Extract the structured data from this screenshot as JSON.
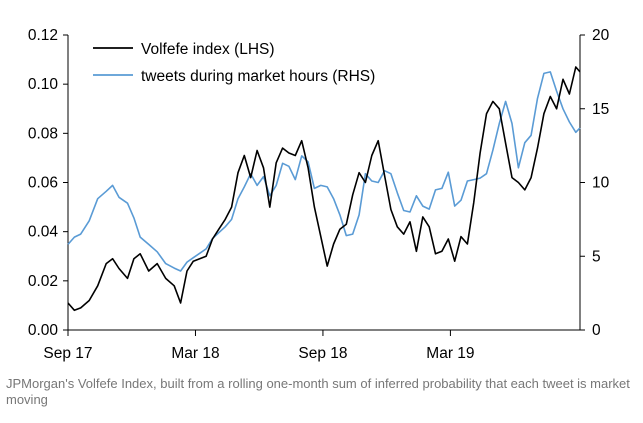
{
  "caption": "JPMorgan's Volfefe Index, built from a rolling one-month sum of inferred probability that each tweet is market moving",
  "colors": {
    "volfefe": "#000000",
    "tweets": "#5a9bd5",
    "axis": "#000000"
  },
  "chart_data": {
    "type": "line",
    "title": "",
    "xlabel": "",
    "ylabel_left": "",
    "ylabel_right": "",
    "x_ticks": [
      {
        "label": "Sep 17",
        "month": 0
      },
      {
        "label": "Mar 18",
        "month": 6
      },
      {
        "label": "Sep 18",
        "month": 12
      },
      {
        "label": "Mar 19",
        "month": 18
      }
    ],
    "x_range_months": [
      0,
      24.1
    ],
    "y_left": {
      "range": [
        0,
        0.12
      ],
      "ticks": [
        "0.00",
        "0.02",
        "0.04",
        "0.06",
        "0.08",
        "0.10",
        "0.12"
      ]
    },
    "y_right": {
      "range": [
        0,
        20
      ],
      "ticks": [
        "0",
        "5",
        "10",
        "15",
        "20"
      ]
    },
    "legend": {
      "placement": "top-left"
    },
    "series": [
      {
        "name": "Volfefe index (LHS)",
        "axis": "left",
        "x": [
          0.0,
          0.3,
          0.6,
          1.0,
          1.4,
          1.8,
          2.1,
          2.4,
          2.8,
          3.1,
          3.4,
          3.8,
          4.2,
          4.6,
          5.0,
          5.3,
          5.6,
          5.9,
          6.2,
          6.5,
          6.8,
          7.1,
          7.4,
          7.7,
          8.0,
          8.3,
          8.6,
          8.9,
          9.2,
          9.5,
          9.8,
          10.1,
          10.4,
          10.7,
          11.0,
          11.3,
          11.6,
          11.9,
          12.2,
          12.5,
          12.8,
          13.1,
          13.4,
          13.7,
          14.0,
          14.3,
          14.6,
          14.9,
          15.2,
          15.5,
          15.8,
          16.1,
          16.4,
          16.7,
          17.0,
          17.3,
          17.6,
          17.9,
          18.2,
          18.5,
          18.8,
          19.1,
          19.4,
          19.7,
          20.0,
          20.3,
          20.6,
          20.9,
          21.2,
          21.5,
          21.8,
          22.1,
          22.4,
          22.7,
          23.0,
          23.3,
          23.6,
          23.9,
          24.1
        ],
        "values": [
          0.011,
          0.008,
          0.009,
          0.012,
          0.018,
          0.027,
          0.029,
          0.025,
          0.021,
          0.029,
          0.031,
          0.024,
          0.027,
          0.021,
          0.018,
          0.011,
          0.024,
          0.028,
          0.029,
          0.03,
          0.037,
          0.041,
          0.045,
          0.05,
          0.064,
          0.071,
          0.062,
          0.073,
          0.066,
          0.05,
          0.068,
          0.074,
          0.072,
          0.071,
          0.077,
          0.066,
          0.05,
          0.038,
          0.026,
          0.035,
          0.041,
          0.043,
          0.055,
          0.064,
          0.06,
          0.071,
          0.077,
          0.063,
          0.049,
          0.042,
          0.039,
          0.044,
          0.032,
          0.046,
          0.042,
          0.031,
          0.032,
          0.037,
          0.028,
          0.038,
          0.035,
          0.052,
          0.072,
          0.088,
          0.093,
          0.09,
          0.076,
          0.062,
          0.06,
          0.057,
          0.062,
          0.074,
          0.088,
          0.095,
          0.09,
          0.102,
          0.096,
          0.107,
          0.105
        ]
      },
      {
        "name": "tweets during market hours (RHS)",
        "axis": "right",
        "x": [
          0.0,
          0.3,
          0.6,
          1.0,
          1.4,
          1.8,
          2.1,
          2.4,
          2.8,
          3.1,
          3.4,
          3.8,
          4.2,
          4.6,
          5.0,
          5.3,
          5.6,
          5.9,
          6.2,
          6.5,
          6.8,
          7.1,
          7.4,
          7.7,
          8.0,
          8.3,
          8.6,
          8.9,
          9.2,
          9.5,
          9.8,
          10.1,
          10.4,
          10.7,
          11.0,
          11.3,
          11.6,
          11.9,
          12.2,
          12.5,
          12.8,
          13.1,
          13.4,
          13.7,
          14.0,
          14.3,
          14.6,
          14.9,
          15.2,
          15.5,
          15.8,
          16.1,
          16.4,
          16.7,
          17.0,
          17.3,
          17.6,
          17.9,
          18.2,
          18.5,
          18.8,
          19.1,
          19.4,
          19.7,
          20.0,
          20.3,
          20.6,
          20.9,
          21.2,
          21.5,
          21.8,
          22.1,
          22.4,
          22.7,
          23.0,
          23.3,
          23.6,
          23.9,
          24.1
        ],
        "values": [
          5.8,
          6.3,
          6.5,
          7.4,
          8.9,
          9.4,
          9.8,
          9.0,
          8.6,
          7.6,
          6.3,
          5.8,
          5.3,
          4.5,
          4.2,
          4.0,
          4.6,
          4.9,
          5.2,
          5.5,
          6.2,
          6.6,
          7.0,
          7.5,
          8.9,
          9.7,
          10.6,
          9.8,
          10.4,
          9.1,
          9.8,
          11.3,
          11.1,
          10.2,
          11.8,
          11.4,
          9.6,
          9.8,
          9.7,
          8.9,
          7.8,
          6.4,
          6.5,
          7.8,
          10.6,
          10.1,
          10.0,
          10.8,
          10.6,
          9.3,
          8.1,
          8.0,
          9.1,
          8.4,
          8.2,
          9.5,
          9.6,
          10.7,
          8.4,
          8.8,
          10.1,
          10.2,
          10.3,
          10.6,
          12.2,
          14.0,
          15.5,
          14.0,
          11.0,
          12.7,
          13.2,
          15.7,
          17.4,
          17.5,
          16.2,
          15.0,
          14.1,
          13.4,
          13.7
        ]
      }
    ]
  }
}
